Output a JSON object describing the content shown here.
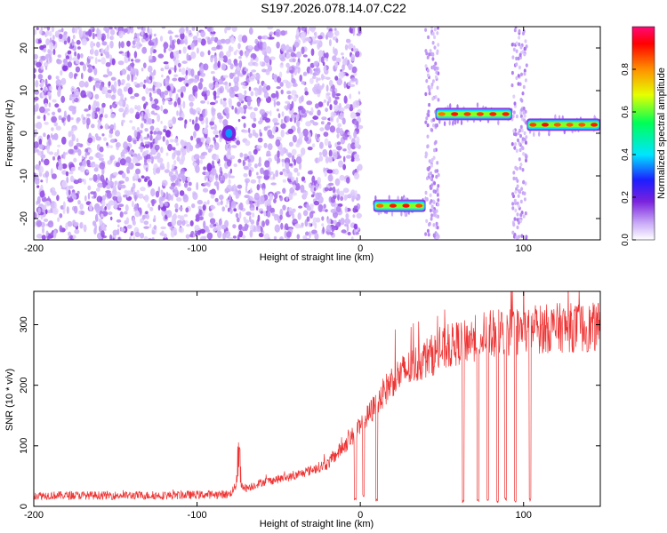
{
  "title": "S197.2026.078.14.07.C22",
  "chart_data": [
    {
      "type": "heatmap",
      "xlabel": "Height of straight line (km)",
      "ylabel": "Frequency (Hz)",
      "xlim": [
        -200,
        147
      ],
      "ylim": [
        -25,
        25
      ],
      "xticks": [
        -200,
        -100,
        0,
        100
      ],
      "yticks": [
        -20,
        -10,
        0,
        10,
        20
      ],
      "colorbar": {
        "label": "Normalized spectral amplitude",
        "range": [
          0.0,
          1.0
        ],
        "ticks": [
          0.0,
          0.2,
          0.4,
          0.6,
          0.8
        ],
        "tick_labels": [
          "0.0",
          "0.2",
          "0.4",
          "0.6",
          "0.8"
        ],
        "colors": [
          "#ffffff",
          "#c8a8f8",
          "#7a22dd",
          "#1d1dff",
          "#00e5ff",
          "#00ff55",
          "#e6ff00",
          "#ff9000",
          "#ff0000",
          "#ff0a78"
        ]
      },
      "features": [
        {
          "name": "noise field",
          "x_range": [
            -200,
            0
          ],
          "freq_range": [
            -25,
            25
          ],
          "amplitude": 0.12
        },
        {
          "name": "spot near -85 km",
          "x_range": [
            -88,
            -73
          ],
          "freq_range": [
            -9,
            3
          ],
          "amplitude": 0.3
        },
        {
          "name": "band -17 Hz",
          "x_range": [
            8,
            40
          ],
          "freq": -17,
          "amplitude": 0.85
        },
        {
          "name": "band 4 Hz",
          "x_range": [
            46,
            93
          ],
          "freq": 4.5,
          "amplitude": 0.85
        },
        {
          "name": "band 2 Hz",
          "x_range": [
            102,
            147
          ],
          "freq": 2,
          "amplitude": 0.85
        }
      ]
    },
    {
      "type": "line",
      "xlabel": "Height of straight line (km)",
      "ylabel": "SNR (10 * v/v)",
      "xlim": [
        -200,
        147
      ],
      "ylim": [
        0,
        355
      ],
      "xticks": [
        -200,
        -100,
        0,
        100
      ],
      "yticks": [
        0,
        100,
        200,
        300
      ],
      "color": "#ee3333",
      "envelope": {
        "x": [
          -200,
          -160,
          -120,
          -80,
          -75,
          -70,
          -60,
          -40,
          -20,
          0,
          20,
          40,
          60,
          80,
          100,
          120,
          147
        ],
        "mean": [
          18,
          18,
          18,
          20,
          38,
          30,
          40,
          50,
          70,
          130,
          210,
          245,
          270,
          285,
          290,
          295,
          295
        ]
      },
      "dropouts": [
        {
          "x": -3,
          "to": 10
        },
        {
          "x": 2,
          "to": 15
        },
        {
          "x": 10,
          "to": 8
        },
        {
          "x": 63,
          "to": 5
        },
        {
          "x": 72,
          "to": 5
        },
        {
          "x": 78,
          "to": 8
        },
        {
          "x": 84,
          "to": 4
        },
        {
          "x": 89,
          "to": 8
        },
        {
          "x": 95,
          "to": 5
        },
        {
          "x": 104,
          "to": 8
        }
      ]
    }
  ]
}
